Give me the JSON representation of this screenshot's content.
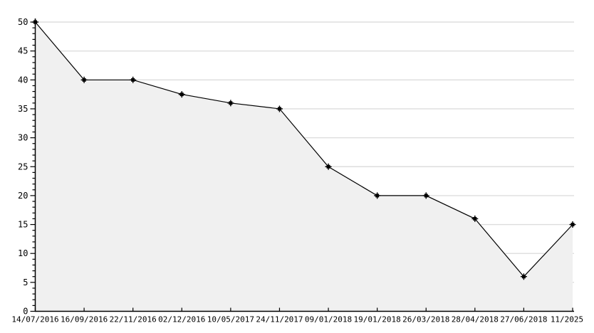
{
  "chart_data": {
    "type": "area",
    "title": "",
    "xlabel": "",
    "ylabel": "",
    "categories": [
      "14/07/2016",
      "16/09/2016",
      "22/11/2016",
      "02/12/2016",
      "10/05/2017",
      "24/11/2017",
      "09/01/2018",
      "19/01/2018",
      "26/03/2018",
      "28/04/2018",
      "27/06/2018",
      "11/2025"
    ],
    "values": [
      50,
      40,
      40,
      37.5,
      36,
      35,
      25,
      20,
      20,
      16,
      6,
      15
    ],
    "ylim": [
      0,
      50
    ],
    "y_ticks": [
      0,
      5,
      10,
      15,
      20,
      25,
      30,
      35,
      40,
      45,
      50
    ],
    "y_tick_labels": [
      "0",
      "5",
      "10",
      "15",
      "20",
      "25",
      "30",
      "35",
      "40",
      "45",
      "50"
    ],
    "y_minor_step": 1,
    "grid": true,
    "legend": "none",
    "marker_style": "star-square",
    "colors": {
      "line": "#000000",
      "marker": "#000000",
      "area_fill": "#f0f0f0",
      "gridline": "#dddddd",
      "axis": "#000000",
      "label": "#000000",
      "background": "#ffffff"
    }
  }
}
